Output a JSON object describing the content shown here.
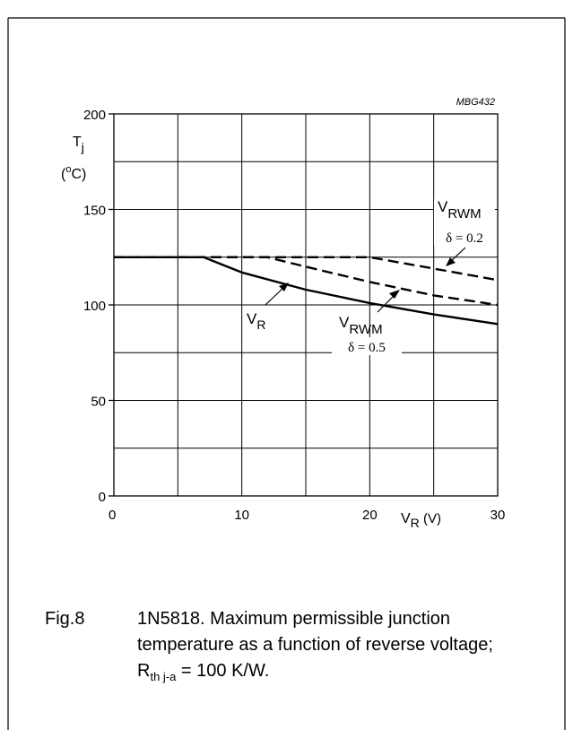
{
  "chart_data": {
    "type": "line",
    "code": "MBG432",
    "ylabel_main": "T",
    "ylabel_sub": "j",
    "yunit_open": "(",
    "yunit_sup": "o",
    "yunit_close": "C)",
    "xlabel_main": "V",
    "xlabel_sub": "R",
    "xunit": " (V)",
    "xlim": [
      0,
      30
    ],
    "ylim": [
      0,
      200
    ],
    "x_ticks": [
      0,
      10,
      20,
      30
    ],
    "y_ticks": [
      0,
      50,
      100,
      150,
      200
    ],
    "grid": true,
    "grid_x_step": 5,
    "grid_y_step": 25,
    "series": [
      {
        "name": "VR",
        "style": "solid",
        "x": [
          0,
          7,
          10,
          15,
          20,
          25,
          30
        ],
        "y": [
          125,
          125,
          117,
          108,
          101,
          95,
          90
        ]
      },
      {
        "name": "VRWM δ = 0.5",
        "style": "dashed",
        "x": [
          0,
          12,
          15,
          20,
          25,
          30
        ],
        "y": [
          125,
          125,
          120,
          112,
          105,
          100
        ]
      },
      {
        "name": "VRWM δ = 0.2",
        "style": "dashed",
        "x": [
          0,
          20,
          25,
          30
        ],
        "y": [
          125,
          125,
          119,
          113
        ]
      }
    ],
    "annotations": {
      "vr": {
        "main": "V",
        "sub": "R"
      },
      "vrwm_05": {
        "main": "V",
        "sub": "RWM",
        "delta": "δ = 0.5"
      },
      "vrwm_02": {
        "main": "V",
        "sub": "RWM",
        "delta": "δ = 0.2"
      }
    }
  },
  "caption": {
    "number": "Fig.8",
    "line1": "1N5818. Maximum permissible junction",
    "line2": "temperature as a function of reverse voltage;",
    "line3_main": "R",
    "line3_sub": "th j-a",
    "line3_rest": " = 100 K/W."
  }
}
